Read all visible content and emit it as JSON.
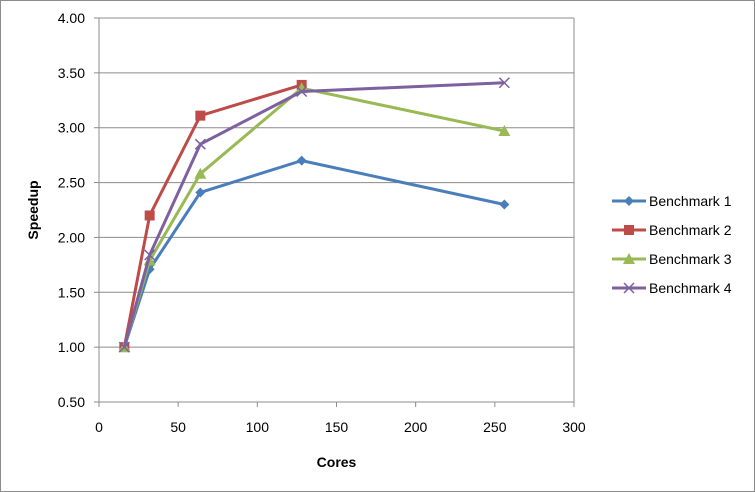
{
  "chart_data": {
    "type": "line",
    "title": "",
    "xlabel": "Cores",
    "ylabel": "Speedup",
    "xlim": [
      0,
      300
    ],
    "ylim": [
      0.5,
      4.0
    ],
    "x_ticks": [
      "0",
      "50",
      "100",
      "150",
      "200",
      "250",
      "300"
    ],
    "y_ticks": [
      "0.50",
      "1.00",
      "1.50",
      "2.00",
      "2.50",
      "3.00",
      "3.50",
      "4.00"
    ],
    "grid": "horizontal",
    "legend_position": "right",
    "x": [
      16,
      32,
      64,
      128,
      256
    ],
    "series": [
      {
        "name": "Benchmark 1",
        "values": [
          1.0,
          1.71,
          2.41,
          2.7,
          2.3
        ],
        "color": "#4a7ebb",
        "marker": "diamond"
      },
      {
        "name": "Benchmark 2",
        "values": [
          1.0,
          2.2,
          3.11,
          3.39,
          null
        ],
        "color": "#be4b48",
        "marker": "square"
      },
      {
        "name": "Benchmark 3",
        "values": [
          1.0,
          1.79,
          2.58,
          3.36,
          2.97
        ],
        "color": "#98b954",
        "marker": "triangle"
      },
      {
        "name": "Benchmark 4",
        "values": [
          1.0,
          1.84,
          2.85,
          3.33,
          3.41
        ],
        "color": "#7d60a0",
        "marker": "x"
      }
    ]
  }
}
